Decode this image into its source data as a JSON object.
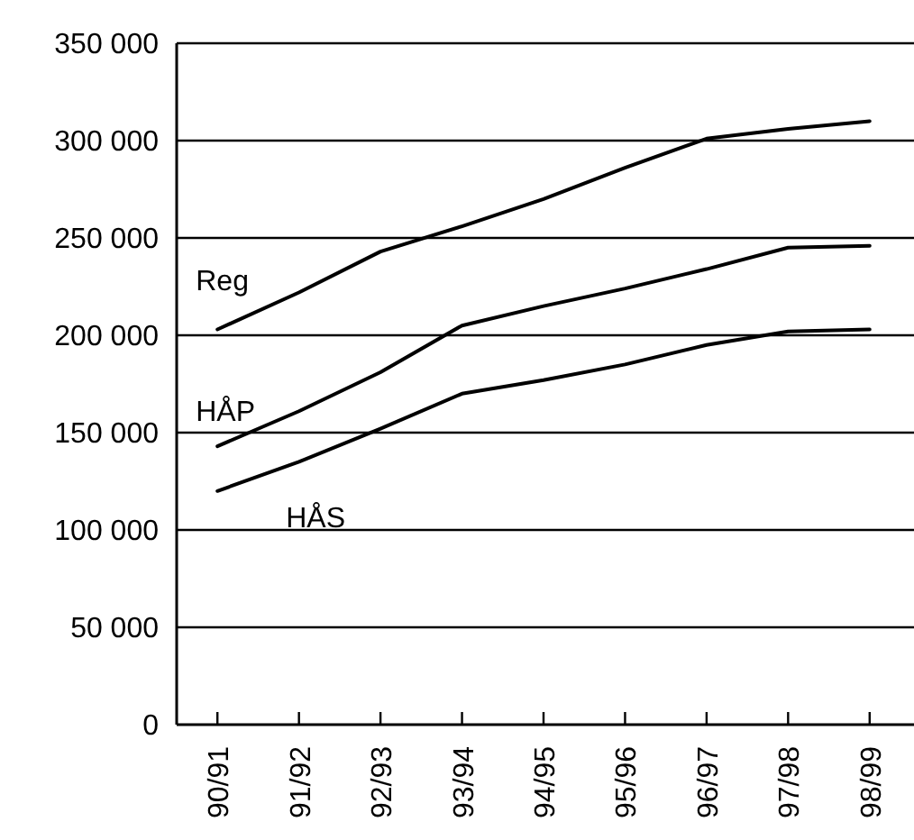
{
  "chart_data": {
    "type": "line",
    "categories": [
      "90/91",
      "91/92",
      "92/93",
      "93/94",
      "94/95",
      "95/96",
      "96/97",
      "97/98",
      "98/99"
    ],
    "series": [
      {
        "name": "Reg",
        "color": "#000000",
        "values": [
          203000,
          222000,
          243000,
          256000,
          270000,
          286000,
          301000,
          306000,
          310000
        ]
      },
      {
        "name": "HÅP",
        "color": "#000000",
        "values": [
          143000,
          161000,
          181000,
          205000,
          215000,
          224000,
          234000,
          245000,
          246000
        ]
      },
      {
        "name": "HÅS",
        "color": "#000000",
        "values": [
          120000,
          135000,
          152000,
          170000,
          177000,
          185000,
          195000,
          202000,
          203000
        ]
      }
    ],
    "ylim": [
      0,
      350000
    ],
    "yticks": [
      0,
      {
        "value": 50000,
        "label": "50 000"
      },
      {
        "value": 100000,
        "label": "100 000"
      },
      {
        "value": 150000,
        "label": "150 000"
      },
      {
        "value": 200000,
        "label": "200 000"
      },
      {
        "value": 250000,
        "label": "250 000"
      },
      {
        "value": 300000,
        "label": "300 000"
      },
      {
        "value": 350000,
        "label": "350 000"
      }
    ],
    "grid": "y",
    "marker": "none",
    "line_style": "solid"
  }
}
